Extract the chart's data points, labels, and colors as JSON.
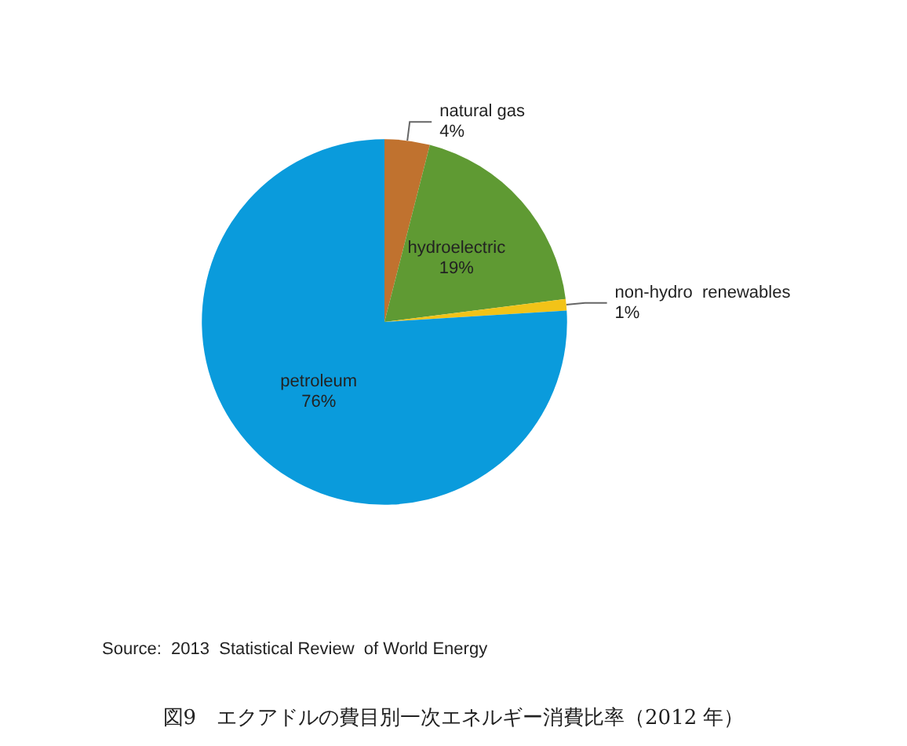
{
  "chart_data": {
    "type": "pie",
    "title": "図9　エクアドルの費目別一次エネルギー消費比率（2012 年）",
    "categories": [
      "natural gas",
      "hydroelectric",
      "non-hydro  renewables",
      "petroleum"
    ],
    "values": [
      4,
      19,
      1,
      76
    ],
    "value_labels": [
      "4%",
      "19%",
      "1%",
      "76%"
    ],
    "colors": [
      "#c0722f",
      "#5f9a33",
      "#f2c318",
      "#0a9bdc"
    ],
    "annotations": [
      "Source:  2013  Statistical Review  of World Energy"
    ],
    "legend": false
  }
}
